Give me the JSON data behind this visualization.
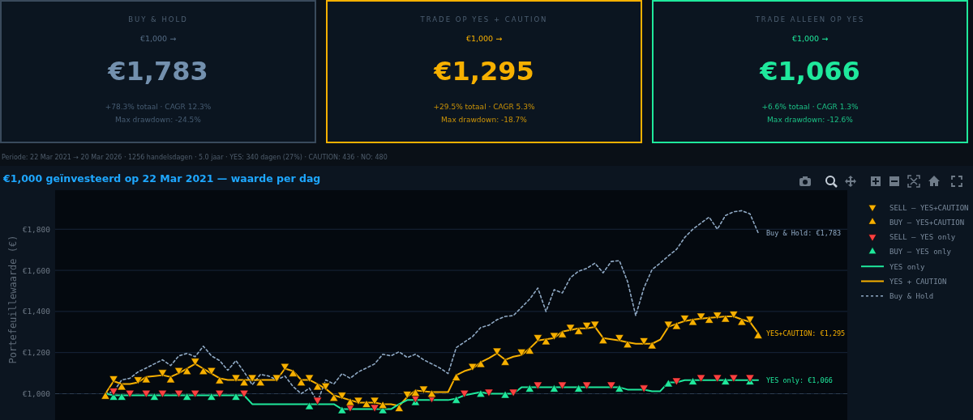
{
  "chart_data": [
    {
      "type": "other",
      "title": "BUY & HOLD",
      "color": "#7390ae",
      "annotations": [
        "€1,000 →",
        "€1,783",
        "+78.3% totaal · CAGR 12.3%",
        "Max drawdown: -24.5%"
      ]
    },
    {
      "type": "other",
      "title": "TRADE OP YES + CAUTION",
      "color": "#f7b000",
      "annotations": [
        "€1,000 →",
        "€1,295",
        "+29.5% totaal · CAGR 5.3%",
        "Max drawdown: -18.7%"
      ]
    },
    {
      "type": "other",
      "title": "TRADE ALLEEN OP YES",
      "color": "#1fe89c",
      "annotations": [
        "€1,000 →",
        "€1,066",
        "+6.6% totaal · CAGR 1.3%",
        "Max drawdown: -12.6%"
      ]
    },
    {
      "type": "line",
      "title": "€1,000 geïnvesteerd op 22 Mar 2021 — waarde per dag",
      "ylabel": "Portefeuillewaarde (€)",
      "categories": [
        null,
        null,
        null,
        null,
        null,
        null,
        null,
        null,
        null,
        null,
        null,
        null,
        null,
        null,
        null,
        null,
        null,
        null,
        null,
        null,
        null,
        null,
        null,
        null,
        null,
        null,
        null,
        null,
        null,
        null,
        null,
        null,
        null,
        null,
        null,
        null,
        null,
        null,
        null,
        null,
        null,
        null,
        null,
        null,
        null,
        null,
        null,
        null,
        null,
        null,
        null,
        null,
        null,
        null,
        null,
        null,
        null,
        null,
        null,
        null,
        null,
        null,
        null,
        null,
        null,
        null,
        null,
        null,
        null,
        null,
        null,
        null,
        null,
        null,
        null,
        null,
        null,
        null,
        null,
        null,
        null
      ],
      "ylim": [
        872,
        1990
      ],
      "yticks": [
        {
          "value": 1000,
          "label": "€1,000"
        },
        {
          "value": 1200,
          "label": "€1,200"
        },
        {
          "value": 1400,
          "label": "€1,400"
        },
        {
          "value": 1600,
          "label": "€1,600"
        },
        {
          "value": 1800,
          "label": "€1,800"
        }
      ],
      "tick_labels": "y",
      "grid": "y",
      "legend": "right",
      "ref_lines": [
        {
          "axis": "y",
          "value": 1000,
          "line_style": "dashed",
          "color": "#2e3e50"
        }
      ],
      "series": [
        {
          "name": "Buy & Hold",
          "type": "line",
          "line_style": "dashed",
          "color": "#8fa9c4",
          "values": [
            1000,
            1010,
            1067,
            1075,
            1106,
            1125,
            1145,
            1165,
            1137,
            1184,
            1196,
            1180,
            1231,
            1184,
            1161,
            1114,
            1161,
            1106,
            1043,
            1094,
            1086,
            1067,
            1086,
            1035,
            1000,
            1027,
            961,
            1067,
            1047,
            1098,
            1075,
            1106,
            1125,
            1145,
            1192,
            1184,
            1204,
            1176,
            1192,
            1165,
            1145,
            1125,
            1098,
            1224,
            1251,
            1278,
            1322,
            1333,
            1360,
            1376,
            1380,
            1420,
            1460,
            1514,
            1400,
            1506,
            1490,
            1565,
            1596,
            1610,
            1635,
            1588,
            1643,
            1647,
            1545,
            1380,
            1514,
            1604,
            1635,
            1670,
            1702,
            1760,
            1800,
            1830,
            1859,
            1800,
            1867,
            1885,
            1890,
            1875,
            1783
          ]
        },
        {
          "name": "YES + CAUTION",
          "type": "line",
          "line_style": "solid",
          "color": "#f7b000",
          "values": [
            1000,
            1061,
            1047,
            1047,
            1055,
            1082,
            1086,
            1090,
            1082,
            1100,
            1122,
            1145,
            1122,
            1098,
            1075,
            1067,
            1067,
            1067,
            1067,
            1067,
            1067,
            1067,
            1122,
            1110,
            1067,
            1067,
            1047,
            1024,
            992,
            980,
            969,
            957,
            957,
            957,
            949,
            949,
            941,
            984,
            1016,
            1012,
            1008,
            1008,
            1008,
            1090,
            1110,
            1122,
            1153,
            1173,
            1196,
            1165,
            1180,
            1188,
            1220,
            1259,
            1265,
            1271,
            1302,
            1310,
            1318,
            1318,
            1325,
            1271,
            1265,
            1259,
            1250,
            1243,
            1243,
            1243,
            1263,
            1325,
            1340,
            1353,
            1360,
            1365,
            1369,
            1372,
            1376,
            1376,
            1361,
            1349,
            1295
          ]
        },
        {
          "name": "YES only",
          "type": "line",
          "line_style": "solid",
          "color": "#1fe89c",
          "values": [
            1000,
            992,
            992,
            992,
            992,
            992,
            992,
            992,
            992,
            992,
            992,
            992,
            992,
            992,
            992,
            992,
            992,
            992,
            949,
            949,
            949,
            949,
            949,
            949,
            949,
            949,
            949,
            949,
            949,
            925,
            925,
            925,
            925,
            925,
            925,
            925,
            949,
            969,
            969,
            969,
            969,
            969,
            969,
            976,
            992,
            1000,
            1008,
            1000,
            1000,
            1000,
            1000,
            1031,
            1031,
            1031,
            1031,
            1031,
            1031,
            1031,
            1031,
            1031,
            1031,
            1031,
            1031,
            1031,
            1020,
            1020,
            1020,
            1012,
            1012,
            1055,
            1055,
            1066,
            1066,
            1066,
            1066,
            1066,
            1066,
            1066,
            1066,
            1066,
            1066
          ]
        },
        {
          "name": "BUY — YES only",
          "type": "scatter",
          "marker": "triangle",
          "color": "#1fe89c",
          "values": [
            null,
            980,
            980,
            null,
            null,
            null,
            980,
            null,
            null,
            null,
            980,
            null,
            null,
            980,
            null,
            null,
            980,
            null,
            null,
            null,
            null,
            null,
            null,
            null,
            null,
            935,
            null,
            null,
            null,
            915,
            null,
            null,
            null,
            null,
            915,
            null,
            null,
            null,
            955,
            null,
            null,
            null,
            null,
            965,
            null,
            null,
            995,
            null,
            null,
            990,
            null,
            null,
            1020,
            null,
            null,
            1020,
            null,
            null,
            1020,
            null,
            null,
            null,
            null,
            1020,
            null,
            null,
            null,
            null,
            null,
            1045,
            null,
            null,
            1055,
            null,
            null,
            null,
            1055,
            null,
            null,
            1055,
            null
          ]
        },
        {
          "name": "SELL — YES only",
          "type": "scatter",
          "marker": "triangle",
          "color": "#ff4040",
          "values": [
            null,
            1015,
            null,
            1005,
            null,
            1005,
            null,
            1005,
            null,
            1005,
            null,
            1005,
            null,
            null,
            1005,
            null,
            null,
            1005,
            null,
            null,
            null,
            null,
            null,
            null,
            null,
            null,
            970,
            null,
            null,
            null,
            935,
            null,
            null,
            935,
            null,
            null,
            null,
            null,
            980,
            null,
            980,
            null,
            null,
            null,
            1005,
            null,
            null,
            1010,
            null,
            null,
            1010,
            null,
            null,
            1045,
            null,
            null,
            1045,
            null,
            null,
            1045,
            null,
            null,
            1045,
            null,
            null,
            null,
            1030,
            null,
            null,
            null,
            1065,
            null,
            null,
            1080,
            null,
            1080,
            null,
            1080,
            null,
            1080,
            null
          ]
        },
        {
          "name": "BUY — YES+CAUTION",
          "type": "scatter",
          "marker": "triangle",
          "color": "#f7b000",
          "values": [
            985,
            null,
            1030,
            null,
            null,
            1065,
            null,
            null,
            1065,
            null,
            1105,
            null,
            1105,
            null,
            1060,
            null,
            null,
            1050,
            null,
            1050,
            null,
            null,
            null,
            1095,
            1050,
            null,
            1030,
            null,
            975,
            null,
            955,
            null,
            945,
            null,
            940,
            null,
            925,
            null,
            1000,
            null,
            995,
            null,
            null,
            1075,
            null,
            null,
            1140,
            null,
            null,
            1150,
            null,
            null,
            1205,
            null,
            1250,
            null,
            1285,
            null,
            1300,
            null,
            null,
            1255,
            null,
            null,
            1235,
            null,
            null,
            1230,
            null,
            null,
            1325,
            null,
            1345,
            null,
            1355,
            null,
            1360,
            null,
            1345,
            null,
            1280
          ]
        },
        {
          "name": "SELL — YES+CAUTION",
          "type": "scatter",
          "marker": "triangle",
          "color": "#f7b000",
          "values": [
            null,
            1075,
            null,
            null,
            1070,
            null,
            null,
            1105,
            null,
            1115,
            null,
            1160,
            null,
            1115,
            null,
            null,
            1080,
            null,
            1080,
            null,
            null,
            1080,
            1135,
            null,
            null,
            1080,
            null,
            1040,
            null,
            995,
            null,
            970,
            null,
            970,
            null,
            null,
            null,
            1000,
            null,
            1025,
            null,
            null,
            null,
            null,
            null,
            1135,
            null,
            null,
            1210,
            null,
            null,
            1205,
            null,
            1275,
            null,
            1285,
            null,
            1325,
            null,
            1335,
            1340,
            null,
            null,
            1275,
            null,
            null,
            1260,
            null,
            null,
            1340,
            null,
            1370,
            null,
            1380,
            null,
            1385,
            null,
            1390,
            null,
            1365,
            null
          ]
        }
      ],
      "annotations": [
        "Periode: 22 Mar 2021 → 20 Mar 2026 · 1256 handelsdagen · 5.0 jaar · YES: 340 dagen (27%) · CAUTION: 436 · NO: 480",
        "Buy & Hold: €1,783",
        "YES+CAUTION: €1,295",
        "YES only: €1,066"
      ]
    }
  ]
}
